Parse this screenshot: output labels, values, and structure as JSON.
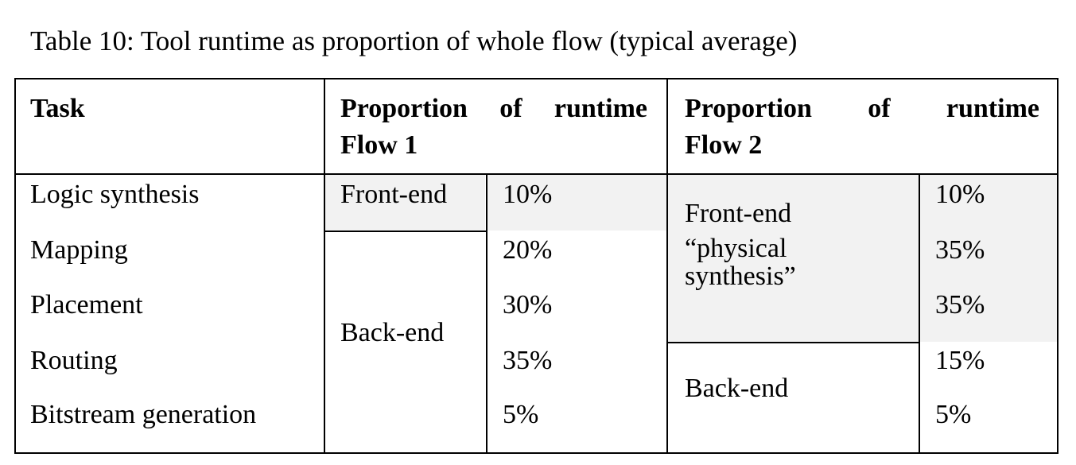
{
  "caption": "Table 10: Tool runtime as proportion of whole flow (typical average)",
  "header": {
    "task": "Task",
    "flow1": {
      "words": [
        "Proportion",
        "of",
        "runtime"
      ],
      "line2": "Flow 1"
    },
    "flow2": {
      "words": [
        "Proportion",
        "of",
        "runtime"
      ],
      "line2": "Flow 2"
    }
  },
  "tasks": [
    "Logic synthesis",
    "Mapping",
    "Placement",
    "Routing",
    "Bitstream generation"
  ],
  "flow1": {
    "groups": {
      "front_end": "Front-end",
      "back_end": "Back-end"
    },
    "values": [
      "10%",
      "20%",
      "30%",
      "35%",
      "5%"
    ]
  },
  "flow2": {
    "groups": {
      "front_end_lines": [
        "Front-end",
        "“physical",
        "synthesis”"
      ],
      "back_end": "Back-end"
    },
    "values": [
      "10%",
      "35%",
      "35%",
      "15%",
      "5%"
    ]
  },
  "colors": {
    "shade": "#f2f2f2",
    "border": "#000000"
  }
}
